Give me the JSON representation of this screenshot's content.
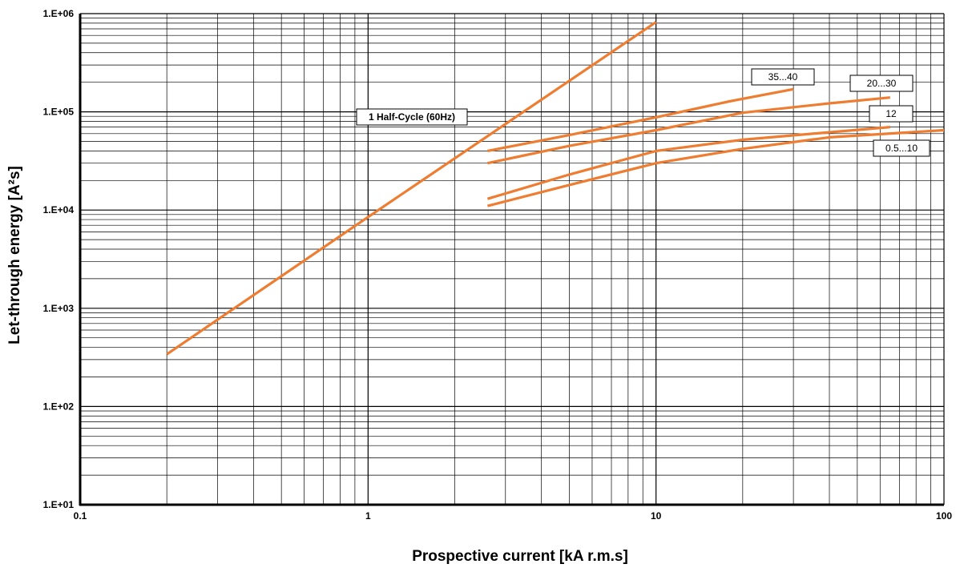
{
  "chart_data": {
    "type": "line",
    "xlabel": "Prospective current [kA r.m.s]",
    "ylabel": "Let-through energy [A²s]",
    "xscale": "log",
    "yscale": "log",
    "xlim": [
      0.1,
      100
    ],
    "ylim": [
      10,
      1000000
    ],
    "grid": true,
    "x_tick_labels": [
      "0.1",
      "1",
      "10",
      "100"
    ],
    "y_tick_labels": [
      "1.E+01",
      "1.E+02",
      "1.E+03",
      "1.E+04",
      "1.E+05",
      "1.E+06"
    ],
    "line_color": "#ee7d31",
    "series": [
      {
        "name": "1 Half-Cycle (60Hz)",
        "x": [
          0.2,
          1,
          10
        ],
        "y": [
          340,
          8500,
          820000
        ]
      },
      {
        "name": "35...40",
        "x": [
          2.6,
          5,
          10,
          18,
          30
        ],
        "y": [
          40000,
          58000,
          88000,
          128000,
          170000
        ]
      },
      {
        "name": "20...30",
        "x": [
          2.6,
          5,
          10,
          20,
          40,
          65
        ],
        "y": [
          30000,
          45000,
          65000,
          98000,
          122000,
          140000
        ]
      },
      {
        "name": "12",
        "x": [
          2.6,
          5,
          10,
          20,
          40,
          65
        ],
        "y": [
          13000,
          23000,
          40000,
          52000,
          62000,
          70000
        ]
      },
      {
        "name": "0.5...10",
        "x": [
          2.6,
          5,
          10,
          20,
          40,
          100
        ],
        "y": [
          11000,
          18000,
          30000,
          42000,
          55000,
          65000
        ]
      }
    ]
  }
}
